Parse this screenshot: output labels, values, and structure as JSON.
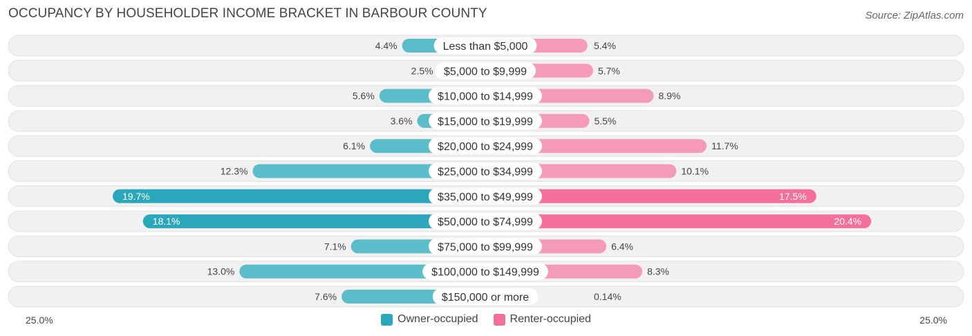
{
  "header": {
    "title": "OCCUPANCY BY HOUSEHOLDER INCOME BRACKET IN BARBOUR COUNTY",
    "source": "Source: ZipAtlas.com"
  },
  "colors": {
    "owner": "#5bbcca",
    "owner_strong": "#2ba7bb",
    "renter": "#f59bb8",
    "renter_strong": "#f4709a",
    "row_bg": "#f1f1f1"
  },
  "chart_data": {
    "type": "bar",
    "orientation": "horizontal-diverging",
    "categories": [
      "Less than $5,000",
      "$5,000 to $9,999",
      "$10,000 to $14,999",
      "$15,000 to $19,999",
      "$20,000 to $24,999",
      "$25,000 to $34,999",
      "$35,000 to $49,999",
      "$50,000 to $74,999",
      "$75,000 to $99,999",
      "$100,000 to $149,999",
      "$150,000 or more"
    ],
    "series": [
      {
        "name": "Owner-occupied",
        "values": [
          4.4,
          2.5,
          5.6,
          3.6,
          6.1,
          12.3,
          19.7,
          18.1,
          7.1,
          13.0,
          7.6
        ],
        "labels": [
          "4.4%",
          "2.5%",
          "5.6%",
          "3.6%",
          "6.1%",
          "12.3%",
          "19.7%",
          "18.1%",
          "7.1%",
          "13.0%",
          "7.6%"
        ]
      },
      {
        "name": "Renter-occupied",
        "values": [
          5.4,
          5.7,
          8.9,
          5.5,
          11.7,
          10.1,
          17.5,
          20.4,
          6.4,
          8.3,
          0.14
        ],
        "labels": [
          "5.4%",
          "5.7%",
          "8.9%",
          "5.5%",
          "11.7%",
          "10.1%",
          "17.5%",
          "20.4%",
          "6.4%",
          "8.3%",
          "0.14%"
        ]
      }
    ],
    "xlim": [
      -25,
      25
    ],
    "axis_left_label": "25.0%",
    "axis_right_label": "25.0%",
    "legend_position": "bottom-center"
  }
}
